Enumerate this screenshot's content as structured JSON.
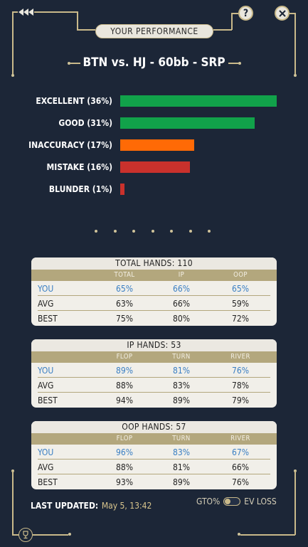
{
  "header": {
    "title": "YOUR PERFORMANCE",
    "help_label": "?",
    "scenario": "BTN vs. HJ - 60bb - SRP"
  },
  "chart_data": {
    "type": "bar",
    "orientation": "horizontal",
    "categories": [
      "EXCELLENT (36%)",
      "GOOD (31%)",
      "INACCURACY (17%)",
      "MISTAKE (16%)",
      "BLUNDER (1%)"
    ],
    "values": [
      36,
      31,
      17,
      16,
      1
    ],
    "xlim": [
      0,
      36
    ],
    "colors": [
      "#11a24a",
      "#11a24a",
      "#ff6a06",
      "#c9312c",
      "#c9312c"
    ]
  },
  "pager": {
    "count": 7
  },
  "tables": [
    {
      "title": "TOTAL HANDS: 110",
      "columns": [
        "TOTAL",
        "IP",
        "OOP"
      ],
      "rows": [
        {
          "label": "YOU",
          "values": [
            "65%",
            "66%",
            "65%"
          ]
        },
        {
          "label": "AVG",
          "values": [
            "63%",
            "66%",
            "59%"
          ]
        },
        {
          "label": "BEST",
          "values": [
            "75%",
            "80%",
            "72%"
          ]
        }
      ]
    },
    {
      "title": "IP HANDS: 53",
      "columns": [
        "FLOP",
        "TURN",
        "RIVER"
      ],
      "rows": [
        {
          "label": "YOU",
          "values": [
            "89%",
            "81%",
            "76%"
          ]
        },
        {
          "label": "AVG",
          "values": [
            "88%",
            "83%",
            "78%"
          ]
        },
        {
          "label": "BEST",
          "values": [
            "94%",
            "89%",
            "79%"
          ]
        }
      ]
    },
    {
      "title": "OOP HANDS: 57",
      "columns": [
        "FLOP",
        "TURN",
        "RIVER"
      ],
      "rows": [
        {
          "label": "YOU",
          "values": [
            "96%",
            "83%",
            "67%"
          ]
        },
        {
          "label": "AVG",
          "values": [
            "88%",
            "81%",
            "66%"
          ]
        },
        {
          "label": "BEST",
          "values": [
            "93%",
            "89%",
            "76%"
          ]
        }
      ]
    }
  ],
  "footer": {
    "last_updated_label": "LAST UPDATED:",
    "last_updated_value": "May 5, 13:42",
    "toggle_left": "GTO%",
    "toggle_right": "EV LOSS"
  },
  "colors": {
    "background": "#1c2637",
    "gold": "#c9b98a",
    "you_blue": "#3a7fc4"
  }
}
